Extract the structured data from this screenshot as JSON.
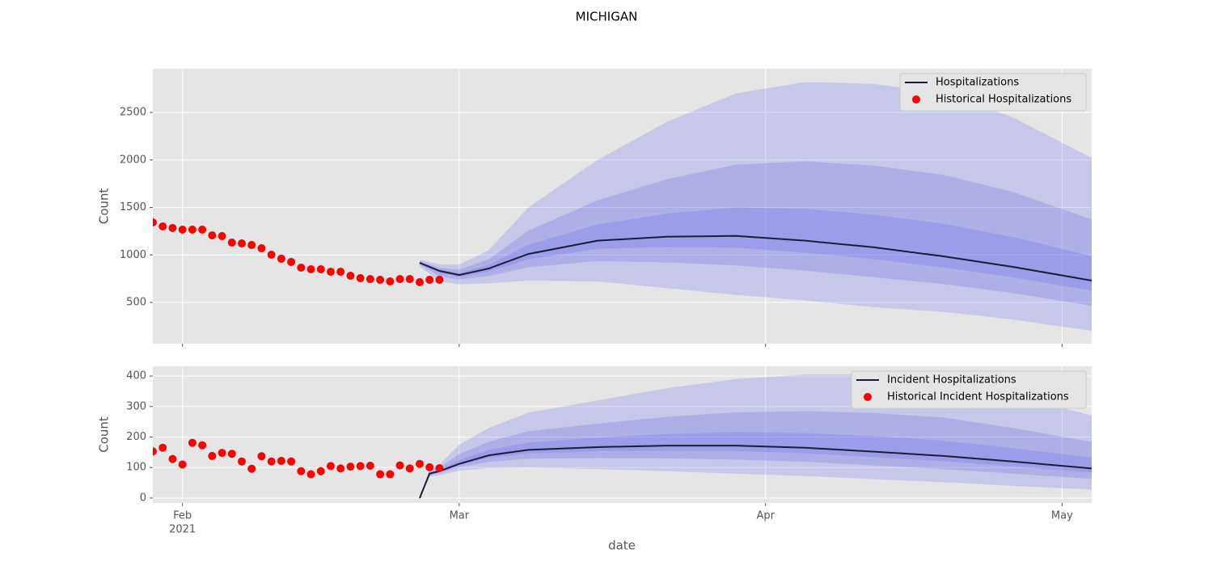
{
  "title": "MICHIGAN",
  "xlabel": "date",
  "chart_data": [
    {
      "type": "fan",
      "ylabel": "Count",
      "xlim": [
        "2021-01-29",
        "2021-05-04"
      ],
      "ylim": [
        66,
        2960
      ],
      "yticks": [
        500,
        1000,
        1500,
        2000,
        2500
      ],
      "xticks": [
        "2021-02-01",
        "2021-03-01",
        "2021-04-01",
        "2021-05-01"
      ],
      "grid": true,
      "legend": "upper right",
      "band_color": "#5050f0",
      "band_opacity": 0.2,
      "bands_x": [
        "2021-02-25",
        "2021-02-27",
        "2021-03-01",
        "2021-03-04",
        "2021-03-08",
        "2021-03-15",
        "2021-03-22",
        "2021-03-29",
        "2021-04-05",
        "2021-04-12",
        "2021-04-19",
        "2021-04-26",
        "2021-05-04"
      ],
      "bands": [
        {
          "lower": [
            880,
            720,
            690,
            700,
            730,
            720,
            650,
            580,
            520,
            450,
            400,
            320,
            200
          ],
          "upper": [
            950,
            900,
            900,
            1050,
            1500,
            2000,
            2400,
            2700,
            2820,
            2800,
            2700,
            2450,
            2020
          ]
        },
        {
          "lower": [
            899,
            776,
            740,
            779,
            870,
            935,
            921,
            890,
            835,
            765,
            693,
            598,
            465
          ],
          "upper": [
            934,
            866,
            845,
            954,
            1255,
            1575,
            1796,
            1950,
            1985,
            1940,
            1843,
            1663,
            1375
          ]
        },
        {
          "lower": [
            910,
            810,
            769,
            826,
            954,
            1064,
            1084,
            1076,
            1024,
            954,
            868,
            764,
            624
          ],
          "upper": [
            924,
            846,
            811,
            896,
            1108,
            1320,
            1434,
            1500,
            1484,
            1424,
            1328,
            1190,
            988
          ]
        }
      ],
      "series": [
        {
          "name": "Hospitalizations",
          "kind": "line",
          "color": "#1c1c3a",
          "x": [
            "2021-02-25",
            "2021-02-27",
            "2021-03-01",
            "2021-03-04",
            "2021-03-08",
            "2021-03-15",
            "2021-03-22",
            "2021-03-29",
            "2021-04-05",
            "2021-04-12",
            "2021-04-19",
            "2021-04-26",
            "2021-05-04"
          ],
          "values": [
            917,
            832,
            789,
            857,
            1010,
            1150,
            1192,
            1200,
            1150,
            1080,
            985,
            875,
            730
          ]
        },
        {
          "name": "Historical Hospitalizations",
          "kind": "scatter",
          "color": "#ff0000",
          "x": [
            "2021-01-29",
            "2021-01-30",
            "2021-01-31",
            "2021-02-01",
            "2021-02-02",
            "2021-02-03",
            "2021-02-04",
            "2021-02-05",
            "2021-02-06",
            "2021-02-07",
            "2021-02-08",
            "2021-02-09",
            "2021-02-10",
            "2021-02-11",
            "2021-02-12",
            "2021-02-13",
            "2021-02-14",
            "2021-02-15",
            "2021-02-16",
            "2021-02-17",
            "2021-02-18",
            "2021-02-19",
            "2021-02-20",
            "2021-02-21",
            "2021-02-22",
            "2021-02-23",
            "2021-02-24",
            "2021-02-25",
            "2021-02-26",
            "2021-02-27"
          ],
          "values": [
            1342,
            1300,
            1283,
            1266,
            1266,
            1266,
            1206,
            1198,
            1130,
            1121,
            1104,
            1070,
            1002,
            960,
            926,
            866,
            849,
            849,
            823,
            823,
            781,
            755,
            746,
            738,
            721,
            746,
            746,
            713,
            738,
            738
          ]
        }
      ]
    },
    {
      "type": "fan",
      "ylabel": "Count",
      "xlim": [
        "2021-01-29",
        "2021-05-04"
      ],
      "ylim": [
        -16,
        432
      ],
      "yticks": [
        0,
        100,
        200,
        300,
        400
      ],
      "xticks": [
        {
          "value": "2021-02-01",
          "label": "Feb"
        },
        {
          "value": "2021-03-01",
          "label": "Mar"
        },
        {
          "value": "2021-04-01",
          "label": "Apr"
        },
        {
          "value": "2021-05-01",
          "label": "May"
        }
      ],
      "xtick_year": "2021",
      "grid": true,
      "legend": "upper right",
      "band_color": "#5050f0",
      "band_opacity": 0.2,
      "bands_x": [
        "2021-02-25",
        "2021-02-26",
        "2021-02-27",
        "2021-03-01",
        "2021-03-04",
        "2021-03-08",
        "2021-03-15",
        "2021-03-22",
        "2021-03-29",
        "2021-04-05",
        "2021-04-12",
        "2021-04-19",
        "2021-04-26",
        "2021-05-04"
      ],
      "bands": [
        {
          "lower": [
            0,
            70,
            75,
            90,
            98,
            100,
            95,
            88,
            80,
            72,
            62,
            52,
            40,
            28
          ],
          "upper": [
            0,
            95,
            110,
            175,
            230,
            280,
            320,
            360,
            390,
            405,
            405,
            390,
            340,
            270
          ]
        },
        {
          "lower": [
            0,
            75,
            82,
            101,
            119,
            129,
            131,
            130,
            126,
            119,
            107,
            95,
            80,
            63
          ],
          "upper": [
            0,
            88,
            99,
            144,
            185,
            219,
            244,
            266,
            281,
            285,
            279,
            264,
            230,
            184
          ]
        },
        {
          "lower": [
            0,
            78,
            85,
            108,
            132,
            146,
            153,
            155,
            154,
            147,
            134,
            121,
            104,
            83
          ],
          "upper": [
            0,
            83,
            92,
            125,
            158,
            182,
            198,
            210,
            216,
            213,
            203,
            188,
            164,
            132
          ]
        }
      ],
      "series": [
        {
          "name": "Incident Hospitalizations",
          "kind": "line",
          "color": "#1c1c3a",
          "x": [
            "2021-02-25",
            "2021-02-26",
            "2021-02-27",
            "2021-03-01",
            "2021-03-04",
            "2021-03-08",
            "2021-03-15",
            "2021-03-22",
            "2021-03-29",
            "2021-04-05",
            "2021-04-12",
            "2021-04-19",
            "2021-04-26",
            "2021-05-04"
          ],
          "values": [
            0,
            80,
            88,
            112,
            140,
            158,
            167,
            172,
            172,
            165,
            152,
            138,
            120,
            97
          ]
        },
        {
          "name": "Historical Incident Hospitalizations",
          "kind": "scatter",
          "color": "#ff0000",
          "x": [
            "2021-01-29",
            "2021-01-30",
            "2021-01-31",
            "2021-02-01",
            "2021-02-02",
            "2021-02-03",
            "2021-02-04",
            "2021-02-05",
            "2021-02-06",
            "2021-02-07",
            "2021-02-08",
            "2021-02-09",
            "2021-02-10",
            "2021-02-11",
            "2021-02-12",
            "2021-02-13",
            "2021-02-14",
            "2021-02-15",
            "2021-02-16",
            "2021-02-17",
            "2021-02-18",
            "2021-02-19",
            "2021-02-20",
            "2021-02-21",
            "2021-02-22",
            "2021-02-23",
            "2021-02-24",
            "2021-02-25",
            "2021-02-26",
            "2021-02-27"
          ],
          "values": [
            153,
            165,
            128,
            110,
            181,
            173,
            138,
            148,
            145,
            120,
            96,
            137,
            120,
            122,
            120,
            88,
            78,
            88,
            105,
            97,
            103,
            105,
            106,
            78,
            78,
            107,
            97,
            112,
            101,
            98
          ]
        }
      ]
    }
  ]
}
